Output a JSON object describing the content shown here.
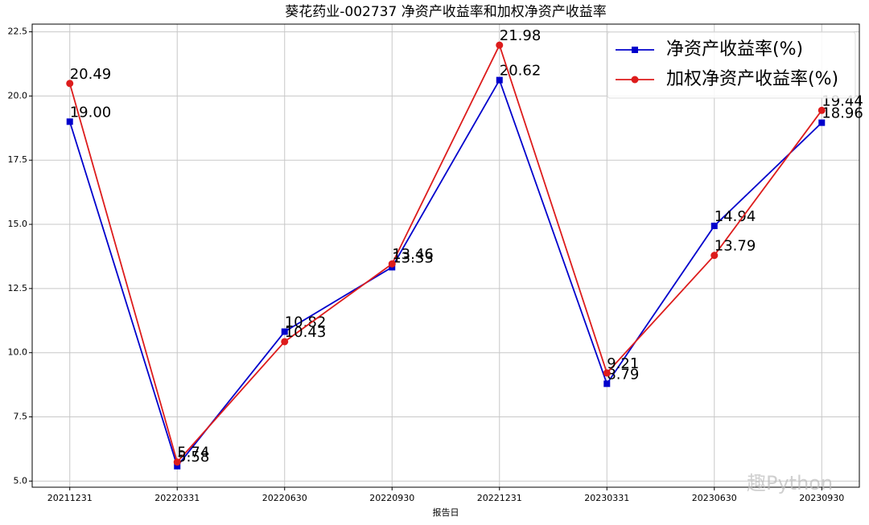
{
  "chart_data": {
    "type": "line",
    "title": "葵花药业-002737 净资产收益率和加权净资产收益率",
    "x_label": "报告日",
    "categories": [
      "20211231",
      "20220331",
      "20220630",
      "20220930",
      "20221231",
      "20230331",
      "20230630",
      "20230930"
    ],
    "series": [
      {
        "name": "净资产收益率(%)",
        "color": "#0000cc",
        "marker": "square",
        "values": [
          19.0,
          5.58,
          10.82,
          13.33,
          20.62,
          8.79,
          14.94,
          18.96
        ],
        "value_labels": [
          "19.00",
          "5.58",
          "10.82",
          "13.33",
          "20.62",
          "8.79",
          "14.94",
          "18.96"
        ]
      },
      {
        "name": "加权净资产收益率(%)",
        "color": "#dd1c1c",
        "marker": "circle",
        "values": [
          20.49,
          5.74,
          10.43,
          13.46,
          21.98,
          9.21,
          13.79,
          19.44
        ],
        "value_labels": [
          "20.49",
          "5.74",
          "10.43",
          "13.46",
          "21.98",
          "9.21",
          "13.79",
          "19.44"
        ]
      }
    ],
    "ylim": [
      4.76,
      22.8
    ],
    "yticks": [
      {
        "value": 5,
        "label": "5.0"
      },
      7.5,
      {
        "value": 10,
        "label": "10.0"
      },
      12.5,
      {
        "value": 15,
        "label": "15.0"
      },
      17.5,
      {
        "value": 20,
        "label": "20.0"
      },
      22.5
    ],
    "grid": true,
    "legend": "upper right",
    "watermark": "趣Python"
  }
}
